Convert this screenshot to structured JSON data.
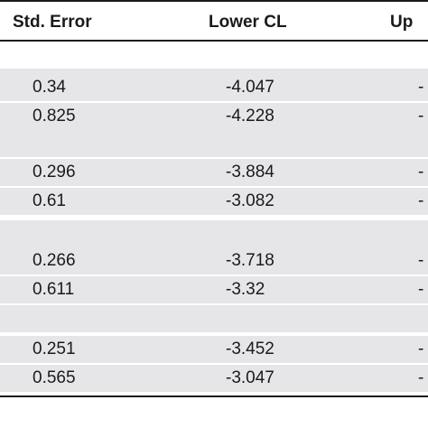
{
  "table": {
    "headers": [
      "Std. Error",
      "Lower CL",
      "Up"
    ],
    "groups": [
      {
        "rows": [
          [
            "0.34",
            "-4.047",
            "-"
          ],
          [
            "0.825",
            "-4.228",
            "-"
          ]
        ]
      },
      {
        "rows": [
          [
            "0.296",
            "-3.884",
            "-"
          ],
          [
            "0.61",
            "-3.082",
            "-"
          ]
        ]
      },
      {
        "rows": [
          [
            "0.266",
            "-3.718",
            "-"
          ],
          [
            "0.611",
            "-3.32",
            "-"
          ]
        ]
      },
      {
        "rows": [
          [
            "0.251",
            "-3.452",
            "-"
          ],
          [
            "0.565",
            "-3.047",
            "-"
          ]
        ]
      }
    ]
  }
}
